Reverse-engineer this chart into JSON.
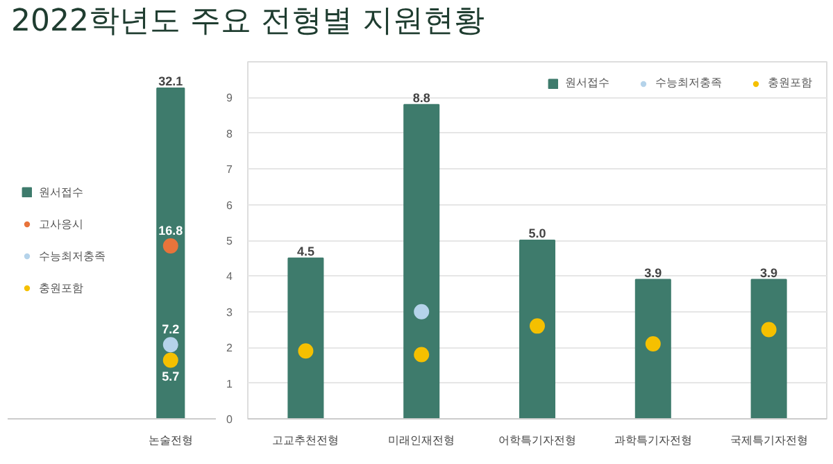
{
  "chart_data": [
    {
      "type": "bar",
      "title": "2022학년도 주요 전형별 지원현황",
      "categories": [
        "논술전형"
      ],
      "legend": "left",
      "series": [
        {
          "name": "원서접수",
          "type": "bar",
          "color": "#3e7b6c",
          "values": [
            32.1
          ],
          "value_labels": [
            "32.1"
          ]
        },
        {
          "name": "고사응시",
          "type": "scatter",
          "color": "#e8743b",
          "values": [
            16.8
          ],
          "value_labels": [
            "16.8"
          ]
        },
        {
          "name": "수능최저충족",
          "type": "scatter",
          "color": "#b5d3ea",
          "values": [
            7.2
          ],
          "value_labels": [
            "7.2"
          ]
        },
        {
          "name": "충원포함",
          "type": "scatter",
          "color": "#f5c000",
          "values": [
            5.7
          ],
          "value_labels": [
            "5.7"
          ]
        }
      ]
    },
    {
      "type": "bar",
      "categories": [
        "고교추천전형",
        "미래인재전형",
        "어학특기자전형",
        "과학특기자전형",
        "국제특기자전형"
      ],
      "ylim": [
        0,
        10
      ],
      "yticks": [
        0,
        1,
        2,
        3,
        4,
        5,
        6,
        7,
        8,
        9
      ],
      "grid": "y",
      "legend": "top right",
      "series": [
        {
          "name": "원서접수",
          "type": "bar",
          "color": "#3e7b6c",
          "values": [
            4.5,
            8.8,
            5.0,
            3.9,
            3.9
          ],
          "value_labels": [
            "4.5",
            "8.8",
            "5.0",
            "3.9",
            "3.9"
          ]
        },
        {
          "name": "수능최저충족",
          "type": "scatter",
          "color": "#b5d3ea",
          "values": [
            null,
            3.0,
            null,
            null,
            null
          ]
        },
        {
          "name": "충원포함",
          "type": "scatter",
          "color": "#f5c000",
          "values": [
            1.9,
            1.8,
            2.6,
            2.1,
            2.5
          ]
        }
      ]
    }
  ]
}
